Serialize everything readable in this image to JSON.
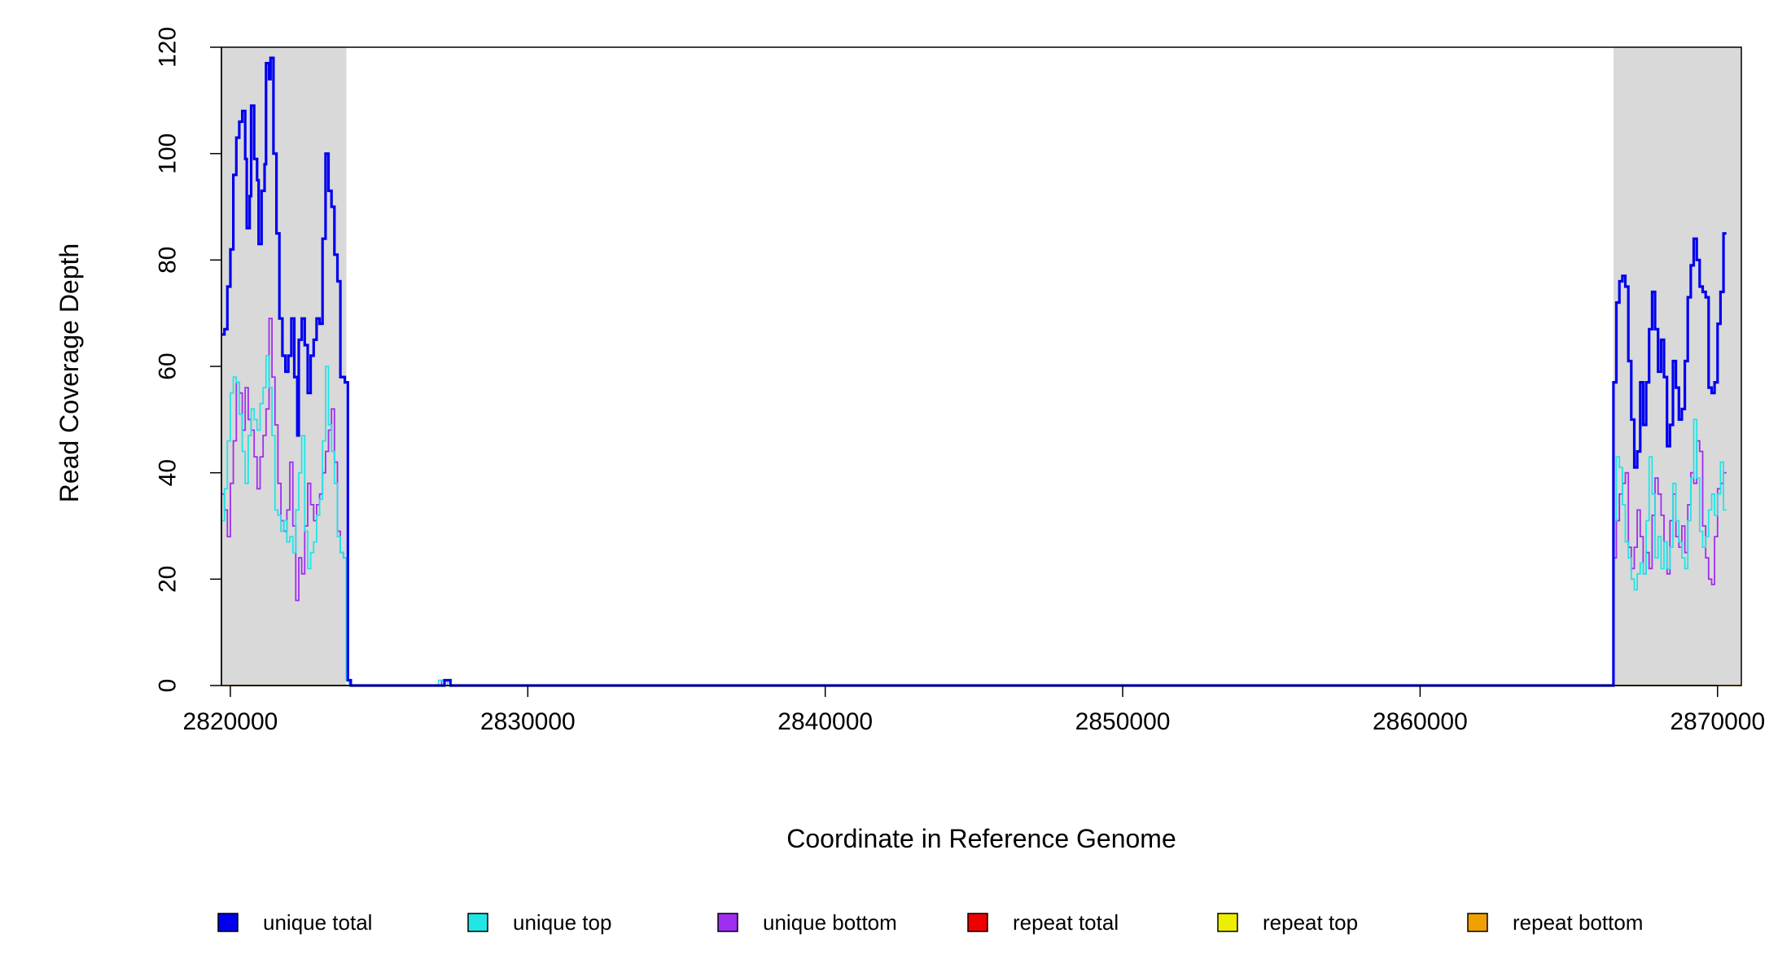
{
  "chart_data": {
    "type": "line",
    "xlabel": "Coordinate in Reference Genome",
    "ylabel": "Read Coverage Depth",
    "xlim": [
      2819700,
      2870800
    ],
    "ylim": [
      0,
      120
    ],
    "xticks": [
      2820000,
      2830000,
      2840000,
      2850000,
      2860000,
      2870000
    ],
    "xtick_labels": [
      "2820000",
      "2830000",
      "2840000",
      "2850000",
      "2860000",
      "2870000"
    ],
    "yticks": [
      0,
      20,
      40,
      60,
      80,
      100,
      120
    ],
    "ytick_labels": [
      "0",
      "20",
      "40",
      "60",
      "80",
      "100",
      "120"
    ],
    "grid": false,
    "legend_position": "bottom",
    "shaded_regions": [
      {
        "x0": 2819700,
        "x1": 2823900,
        "color": "#d9d9d9"
      },
      {
        "x0": 2866500,
        "x1": 2870800,
        "color": "#d9d9d9"
      }
    ],
    "series": [
      {
        "name": "unique total",
        "color": "#0000ee",
        "style": "step",
        "points": [
          [
            2819700,
            66
          ],
          [
            2819800,
            67
          ],
          [
            2819900,
            75
          ],
          [
            2820000,
            82
          ],
          [
            2820100,
            96
          ],
          [
            2820200,
            103
          ],
          [
            2820300,
            106
          ],
          [
            2820400,
            108
          ],
          [
            2820500,
            99
          ],
          [
            2820550,
            86
          ],
          [
            2820650,
            92
          ],
          [
            2820700,
            109
          ],
          [
            2820800,
            99
          ],
          [
            2820900,
            95
          ],
          [
            2820950,
            83
          ],
          [
            2821050,
            93
          ],
          [
            2821150,
            98
          ],
          [
            2821200,
            117
          ],
          [
            2821300,
            114
          ],
          [
            2821350,
            118
          ],
          [
            2821450,
            100
          ],
          [
            2821550,
            85
          ],
          [
            2821650,
            69
          ],
          [
            2821750,
            62
          ],
          [
            2821850,
            59
          ],
          [
            2821950,
            62
          ],
          [
            2822050,
            69
          ],
          [
            2822150,
            58
          ],
          [
            2822250,
            47
          ],
          [
            2822300,
            65
          ],
          [
            2822400,
            69
          ],
          [
            2822500,
            64
          ],
          [
            2822600,
            55
          ],
          [
            2822700,
            62
          ],
          [
            2822800,
            65
          ],
          [
            2822900,
            69
          ],
          [
            2823000,
            68
          ],
          [
            2823100,
            84
          ],
          [
            2823200,
            100
          ],
          [
            2823300,
            93
          ],
          [
            2823400,
            90
          ],
          [
            2823500,
            81
          ],
          [
            2823600,
            76
          ],
          [
            2823700,
            58
          ],
          [
            2823850,
            57
          ],
          [
            2823950,
            1
          ],
          [
            2824050,
            0
          ],
          [
            2827200,
            1
          ],
          [
            2827400,
            0
          ],
          [
            2866500,
            57
          ],
          [
            2866600,
            72
          ],
          [
            2866700,
            76
          ],
          [
            2866800,
            77
          ],
          [
            2866900,
            75
          ],
          [
            2867000,
            61
          ],
          [
            2867100,
            50
          ],
          [
            2867200,
            41
          ],
          [
            2867300,
            44
          ],
          [
            2867400,
            57
          ],
          [
            2867500,
            49
          ],
          [
            2867600,
            57
          ],
          [
            2867700,
            67
          ],
          [
            2867800,
            74
          ],
          [
            2867900,
            67
          ],
          [
            2868000,
            59
          ],
          [
            2868100,
            65
          ],
          [
            2868200,
            58
          ],
          [
            2868300,
            45
          ],
          [
            2868400,
            49
          ],
          [
            2868500,
            61
          ],
          [
            2868600,
            56
          ],
          [
            2868700,
            50
          ],
          [
            2868800,
            52
          ],
          [
            2868900,
            61
          ],
          [
            2869000,
            73
          ],
          [
            2869100,
            79
          ],
          [
            2869200,
            84
          ],
          [
            2869300,
            80
          ],
          [
            2869400,
            75
          ],
          [
            2869500,
            74
          ],
          [
            2869600,
            73
          ],
          [
            2869700,
            56
          ],
          [
            2869800,
            55
          ],
          [
            2869900,
            57
          ],
          [
            2870000,
            68
          ],
          [
            2870100,
            74
          ],
          [
            2870200,
            85
          ]
        ]
      },
      {
        "name": "unique top",
        "color": "#22e5e5",
        "style": "step",
        "points": [
          [
            2819700,
            31
          ],
          [
            2819800,
            37
          ],
          [
            2819900,
            46
          ],
          [
            2820000,
            55
          ],
          [
            2820100,
            58
          ],
          [
            2820200,
            57
          ],
          [
            2820300,
            51
          ],
          [
            2820400,
            44
          ],
          [
            2820500,
            38
          ],
          [
            2820600,
            47
          ],
          [
            2820700,
            52
          ],
          [
            2820800,
            50
          ],
          [
            2820900,
            48
          ],
          [
            2821000,
            53
          ],
          [
            2821100,
            56
          ],
          [
            2821200,
            62
          ],
          [
            2821300,
            56
          ],
          [
            2821400,
            47
          ],
          [
            2821500,
            33
          ],
          [
            2821600,
            32
          ],
          [
            2821700,
            29
          ],
          [
            2821800,
            31
          ],
          [
            2821900,
            27
          ],
          [
            2822000,
            28
          ],
          [
            2822100,
            25
          ],
          [
            2822200,
            33
          ],
          [
            2822300,
            40
          ],
          [
            2822400,
            47
          ],
          [
            2822500,
            29
          ],
          [
            2822600,
            22
          ],
          [
            2822700,
            25
          ],
          [
            2822800,
            27
          ],
          [
            2822900,
            32
          ],
          [
            2823000,
            35
          ],
          [
            2823100,
            46
          ],
          [
            2823200,
            60
          ],
          [
            2823300,
            49
          ],
          [
            2823400,
            44
          ],
          [
            2823500,
            38
          ],
          [
            2823600,
            28
          ],
          [
            2823700,
            25
          ],
          [
            2823800,
            24
          ],
          [
            2823900,
            1
          ],
          [
            2824000,
            0
          ],
          [
            2827000,
            1
          ],
          [
            2827300,
            0
          ],
          [
            2866500,
            31
          ],
          [
            2866600,
            43
          ],
          [
            2866700,
            41
          ],
          [
            2866800,
            34
          ],
          [
            2866900,
            27
          ],
          [
            2867000,
            24
          ],
          [
            2867100,
            20
          ],
          [
            2867200,
            18
          ],
          [
            2867300,
            21
          ],
          [
            2867400,
            23
          ],
          [
            2867500,
            21
          ],
          [
            2867600,
            31
          ],
          [
            2867700,
            43
          ],
          [
            2867800,
            36
          ],
          [
            2867900,
            24
          ],
          [
            2868000,
            28
          ],
          [
            2868100,
            22
          ],
          [
            2868200,
            27
          ],
          [
            2868300,
            22
          ],
          [
            2868400,
            26
          ],
          [
            2868500,
            38
          ],
          [
            2868600,
            31
          ],
          [
            2868700,
            27
          ],
          [
            2868800,
            24
          ],
          [
            2868900,
            22
          ],
          [
            2869000,
            31
          ],
          [
            2869100,
            39
          ],
          [
            2869200,
            50
          ],
          [
            2869300,
            39
          ],
          [
            2869400,
            29
          ],
          [
            2869500,
            26
          ],
          [
            2869600,
            28
          ],
          [
            2869700,
            33
          ],
          [
            2869800,
            36
          ],
          [
            2869900,
            32
          ],
          [
            2870000,
            36
          ],
          [
            2870100,
            42
          ],
          [
            2870200,
            33
          ]
        ]
      },
      {
        "name": "unique bottom",
        "color": "#9f2ef0",
        "style": "step",
        "points": [
          [
            2819700,
            36
          ],
          [
            2819800,
            33
          ],
          [
            2819900,
            28
          ],
          [
            2820000,
            38
          ],
          [
            2820100,
            46
          ],
          [
            2820200,
            57
          ],
          [
            2820300,
            55
          ],
          [
            2820400,
            48
          ],
          [
            2820500,
            56
          ],
          [
            2820600,
            50
          ],
          [
            2820700,
            48
          ],
          [
            2820800,
            43
          ],
          [
            2820900,
            37
          ],
          [
            2821000,
            43
          ],
          [
            2821100,
            47
          ],
          [
            2821200,
            52
          ],
          [
            2821300,
            69
          ],
          [
            2821400,
            58
          ],
          [
            2821500,
            49
          ],
          [
            2821600,
            38
          ],
          [
            2821700,
            31
          ],
          [
            2821800,
            29
          ],
          [
            2821900,
            33
          ],
          [
            2822000,
            42
          ],
          [
            2822100,
            30
          ],
          [
            2822200,
            16
          ],
          [
            2822300,
            24
          ],
          [
            2822400,
            21
          ],
          [
            2822500,
            30
          ],
          [
            2822600,
            38
          ],
          [
            2822700,
            34
          ],
          [
            2822800,
            31
          ],
          [
            2822900,
            34
          ],
          [
            2823000,
            36
          ],
          [
            2823100,
            40
          ],
          [
            2823200,
            44
          ],
          [
            2823300,
            48
          ],
          [
            2823400,
            52
          ],
          [
            2823500,
            42
          ],
          [
            2823600,
            29
          ],
          [
            2823700,
            25
          ],
          [
            2823800,
            24
          ],
          [
            2823900,
            1
          ],
          [
            2824000,
            0
          ],
          [
            2827100,
            1
          ],
          [
            2827400,
            0
          ],
          [
            2866500,
            24
          ],
          [
            2866600,
            31
          ],
          [
            2866700,
            36
          ],
          [
            2866800,
            38
          ],
          [
            2866900,
            40
          ],
          [
            2867000,
            26
          ],
          [
            2867100,
            22
          ],
          [
            2867200,
            26
          ],
          [
            2867300,
            33
          ],
          [
            2867400,
            28
          ],
          [
            2867500,
            21
          ],
          [
            2867600,
            25
          ],
          [
            2867700,
            22
          ],
          [
            2867800,
            32
          ],
          [
            2867900,
            39
          ],
          [
            2868000,
            36
          ],
          [
            2868100,
            32
          ],
          [
            2868200,
            27
          ],
          [
            2868300,
            21
          ],
          [
            2868400,
            31
          ],
          [
            2868500,
            36
          ],
          [
            2868600,
            28
          ],
          [
            2868700,
            26
          ],
          [
            2868800,
            30
          ],
          [
            2868900,
            25
          ],
          [
            2869000,
            34
          ],
          [
            2869100,
            40
          ],
          [
            2869200,
            38
          ],
          [
            2869300,
            46
          ],
          [
            2869400,
            44
          ],
          [
            2869500,
            30
          ],
          [
            2869600,
            24
          ],
          [
            2869700,
            20
          ],
          [
            2869800,
            19
          ],
          [
            2869900,
            28
          ],
          [
            2870000,
            37
          ],
          [
            2870100,
            38
          ],
          [
            2870200,
            40
          ]
        ]
      },
      {
        "name": "repeat total",
        "color": "#ee0000",
        "style": "step",
        "points": [
          [
            2819700,
            0
          ],
          [
            2870800,
            0
          ]
        ]
      },
      {
        "name": "repeat top",
        "color": "#eeee00",
        "style": "step",
        "points": [
          [
            2819700,
            0
          ],
          [
            2870800,
            0
          ]
        ]
      },
      {
        "name": "repeat bottom",
        "color": "#f0a000",
        "style": "step",
        "points": [
          [
            2819700,
            0
          ],
          [
            2870800,
            0
          ]
        ]
      }
    ]
  }
}
